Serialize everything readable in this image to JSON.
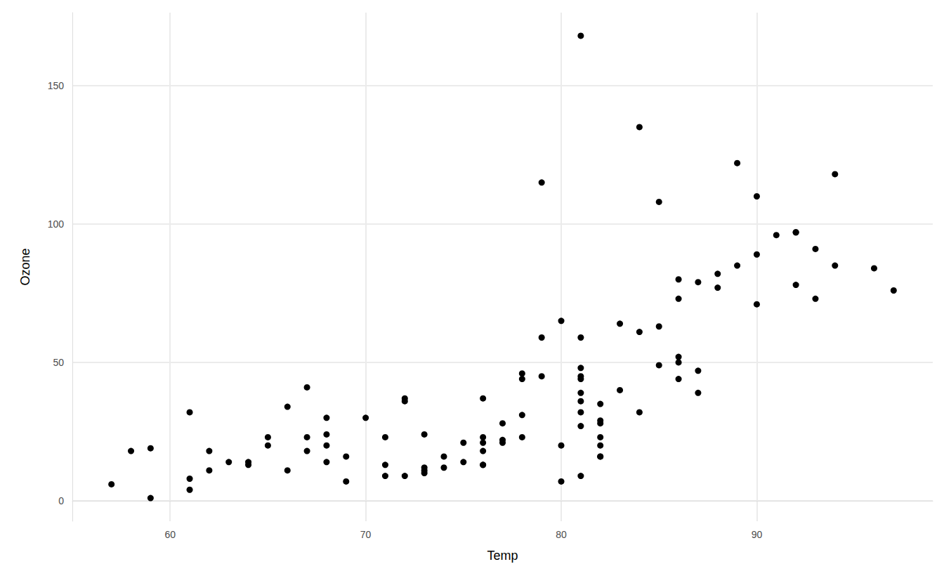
{
  "chart_data": {
    "type": "scatter",
    "x_label": "Temp",
    "y_label": "Ozone",
    "x": [
      57,
      58,
      59,
      59,
      61,
      61,
      61,
      62,
      62,
      63,
      64,
      64,
      65,
      65,
      66,
      66,
      67,
      67,
      67,
      68,
      68,
      68,
      68,
      69,
      69,
      70,
      71,
      71,
      71,
      72,
      72,
      72,
      73,
      73,
      73,
      73,
      74,
      74,
      75,
      75,
      76,
      76,
      76,
      76,
      76,
      76,
      77,
      77,
      77,
      78,
      78,
      78,
      78,
      79,
      79,
      79,
      80,
      80,
      80,
      81,
      81,
      81,
      81,
      81,
      81,
      81,
      81,
      81,
      81,
      82,
      82,
      82,
      82,
      82,
      82,
      82,
      83,
      83,
      84,
      84,
      84,
      85,
      85,
      85,
      86,
      86,
      86,
      86,
      86,
      87,
      87,
      87,
      88,
      88,
      89,
      89,
      90,
      90,
      90,
      91,
      92,
      92,
      92,
      93,
      93,
      94,
      94,
      96,
      97
    ],
    "values": [
      6,
      18,
      19,
      1,
      32,
      8,
      4,
      18,
      11,
      14,
      14,
      13,
      23,
      20,
      34,
      11,
      41,
      23,
      18,
      30,
      24,
      20,
      14,
      16,
      7,
      30,
      23,
      13,
      9,
      37,
      36,
      9,
      24,
      12,
      11,
      10,
      16,
      12,
      21,
      14,
      37,
      23,
      21,
      18,
      13,
      13,
      28,
      22,
      21,
      46,
      44,
      31,
      23,
      115,
      59,
      45,
      65,
      20,
      7,
      168,
      59,
      48,
      45,
      44,
      39,
      36,
      32,
      27,
      9,
      35,
      29,
      28,
      23,
      20,
      16,
      16,
      64,
      40,
      135,
      61,
      32,
      108,
      63,
      49,
      80,
      73,
      52,
      50,
      44,
      79,
      47,
      39,
      82,
      77,
      122,
      85,
      110,
      89,
      71,
      96,
      97,
      97,
      78,
      91,
      73,
      118,
      85,
      84,
      76
    ],
    "color": "#000000",
    "marker": "circle",
    "xlim": [
      55,
      99
    ],
    "ylim": [
      -7.35,
      176.35
    ],
    "xticks": [
      60,
      70,
      80,
      90
    ],
    "yticks": [
      0,
      50,
      100,
      150
    ],
    "grid": true
  }
}
